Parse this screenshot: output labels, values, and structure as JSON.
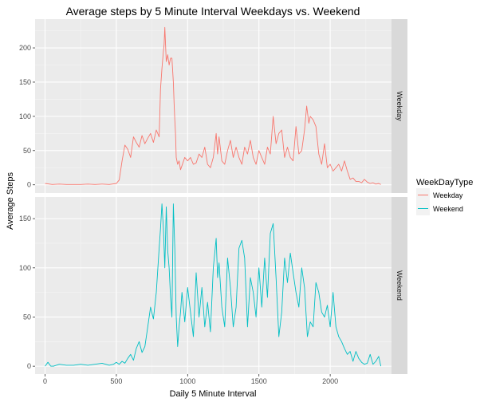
{
  "chart_data": {
    "type": "line",
    "title": "Average steps by 5 Minute Interval Weekdays vs. Weekend",
    "xlabel": "Daily 5 Minute Interval",
    "ylabel": "Average Steps",
    "xlim": [
      -70,
      2430
    ],
    "x_ticks": [
      0,
      500,
      1000,
      1500,
      2000
    ],
    "grid": true,
    "legend": {
      "title": "WeekDayType",
      "position": "right",
      "entries": [
        "Weekday",
        "Weekend"
      ]
    },
    "panels": [
      {
        "strip_label": "Weekday",
        "ylim": [
          -12,
          242
        ],
        "y_ticks": [
          0,
          50,
          100,
          150,
          200
        ],
        "series_name": "Weekday",
        "color": "#F8766D",
        "x": [
          0,
          50,
          100,
          150,
          200,
          250,
          300,
          350,
          400,
          450,
          500,
          520,
          540,
          560,
          580,
          600,
          620,
          640,
          660,
          680,
          700,
          720,
          740,
          760,
          780,
          800,
          810,
          820,
          830,
          835,
          840,
          850,
          860,
          870,
          880,
          890,
          900,
          905,
          910,
          915,
          920,
          930,
          940,
          950,
          960,
          980,
          1000,
          1020,
          1040,
          1060,
          1080,
          1100,
          1120,
          1140,
          1160,
          1180,
          1200,
          1210,
          1220,
          1240,
          1260,
          1280,
          1300,
          1320,
          1340,
          1360,
          1380,
          1400,
          1420,
          1440,
          1460,
          1480,
          1500,
          1520,
          1540,
          1560,
          1580,
          1600,
          1620,
          1640,
          1660,
          1680,
          1700,
          1720,
          1740,
          1760,
          1780,
          1800,
          1820,
          1835,
          1850,
          1860,
          1880,
          1900,
          1920,
          1940,
          1960,
          1980,
          2000,
          2020,
          2040,
          2060,
          2080,
          2100,
          2120,
          2140,
          2160,
          2180,
          2200,
          2220,
          2240,
          2260,
          2280,
          2300,
          2320,
          2340,
          2355
        ],
        "y": [
          2,
          0.5,
          1,
          0.5,
          0.5,
          0.5,
          1,
          0.5,
          1,
          0.5,
          2,
          7,
          35,
          58,
          52,
          40,
          70,
          62,
          55,
          72,
          60,
          68,
          75,
          62,
          80,
          70,
          140,
          170,
          195,
          205,
          230,
          180,
          190,
          175,
          185,
          185,
          150,
          120,
          95,
          75,
          40,
          30,
          35,
          22,
          28,
          40,
          35,
          40,
          30,
          32,
          45,
          40,
          55,
          30,
          25,
          40,
          75,
          45,
          70,
          35,
          30,
          50,
          65,
          40,
          55,
          40,
          30,
          55,
          45,
          65,
          40,
          30,
          50,
          40,
          30,
          55,
          45,
          100,
          60,
          75,
          80,
          40,
          55,
          40,
          35,
          85,
          45,
          50,
          80,
          115,
          90,
          100,
          95,
          85,
          45,
          30,
          60,
          25,
          30,
          20,
          25,
          30,
          20,
          35,
          20,
          8,
          10,
          5,
          5,
          3,
          8,
          4,
          2,
          3,
          1,
          2,
          0.5
        ]
      },
      {
        "strip_label": "Weekend",
        "ylim": [
          -8,
          172
        ],
        "y_ticks": [
          0,
          50,
          100,
          150
        ],
        "series_name": "Weekend",
        "color": "#00BFC4",
        "x": [
          0,
          20,
          40,
          60,
          100,
          150,
          200,
          250,
          300,
          350,
          400,
          450,
          480,
          500,
          520,
          540,
          560,
          580,
          600,
          620,
          640,
          660,
          680,
          700,
          720,
          740,
          760,
          780,
          800,
          810,
          820,
          830,
          840,
          850,
          860,
          870,
          880,
          890,
          900,
          910,
          920,
          930,
          940,
          950,
          960,
          980,
          1000,
          1020,
          1040,
          1060,
          1080,
          1100,
          1120,
          1140,
          1160,
          1180,
          1200,
          1210,
          1220,
          1240,
          1260,
          1280,
          1300,
          1320,
          1340,
          1360,
          1380,
          1400,
          1420,
          1440,
          1460,
          1480,
          1500,
          1520,
          1540,
          1560,
          1580,
          1600,
          1620,
          1640,
          1660,
          1680,
          1700,
          1720,
          1740,
          1760,
          1780,
          1800,
          1820,
          1840,
          1860,
          1880,
          1900,
          1920,
          1940,
          1960,
          1980,
          2000,
          2020,
          2040,
          2060,
          2080,
          2100,
          2120,
          2140,
          2160,
          2180,
          2200,
          2220,
          2240,
          2260,
          2280,
          2300,
          2320,
          2340,
          2355
        ],
        "y": [
          0,
          4,
          0,
          0,
          2,
          1,
          1,
          2,
          1,
          2,
          3,
          1,
          2,
          4,
          2,
          5,
          3,
          8,
          12,
          6,
          18,
          25,
          14,
          20,
          40,
          60,
          48,
          75,
          120,
          140,
          165,
          140,
          100,
          162,
          118,
          100,
          70,
          50,
          165,
          120,
          50,
          20,
          40,
          55,
          75,
          45,
          80,
          55,
          30,
          95,
          50,
          80,
          40,
          65,
          35,
          100,
          130,
          90,
          105,
          60,
          40,
          110,
          80,
          40,
          60,
          120,
          128,
          110,
          40,
          90,
          75,
          50,
          100,
          60,
          110,
          70,
          135,
          145,
          90,
          30,
          55,
          110,
          85,
          115,
          95,
          75,
          60,
          100,
          80,
          30,
          45,
          40,
          85,
          75,
          55,
          50,
          62,
          40,
          75,
          40,
          30,
          25,
          18,
          12,
          15,
          5,
          15,
          8,
          4,
          2,
          3,
          12,
          2,
          5,
          10,
          0
        ]
      }
    ]
  }
}
